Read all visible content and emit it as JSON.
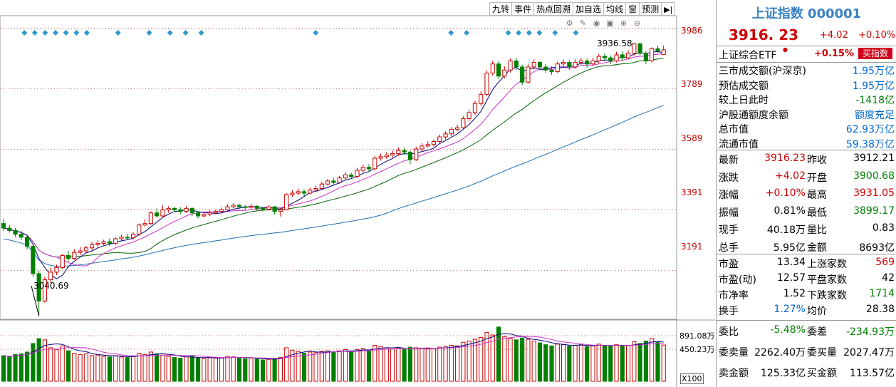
{
  "toolbar": {
    "buttons": [
      "九转",
      "事件",
      "热点回溯",
      "加自选",
      "均线",
      "窗",
      "预测"
    ],
    "collapse_icon": "collapse-right-icon"
  },
  "tool_icons": [
    "settings-icon",
    "pen-icon",
    "eye-icon",
    "lock-icon",
    "zoom-in-icon",
    "zoom-out-icon"
  ],
  "price_axis": {
    "ticks": [
      "3986",
      "3789",
      "3589",
      "3391",
      "3191"
    ],
    "high_annotation": "3936.58",
    "low_annotation": "3040.69"
  },
  "volume_axis": {
    "ticks": [
      "891.08万",
      "450.23万"
    ],
    "unit": "X100"
  },
  "colors": {
    "up": "#cc0000",
    "down": "#008000",
    "ma5": "#000080",
    "ma10": "#cc33cc",
    "ma20": "#006400",
    "ma60": "#1f6fb2",
    "event_marker": "#3399cc",
    "title": "#3a82c4"
  },
  "quote": {
    "title": "上证指数  000001",
    "price": "3916. 23",
    "change": "+4.02",
    "change_pct": "+0.10%",
    "etf_name": "上证综合ETF",
    "etf_pct": "+0.15%",
    "etf_button": "买指数",
    "turnover": [
      {
        "k": "三市成交额(沪深京)",
        "v": "1.95万亿",
        "c": "blue"
      },
      {
        "k": "预估成交额",
        "v": "1.95万亿",
        "c": "blue"
      },
      {
        "k": "较上日此时",
        "v": "-1418亿",
        "c": "grn"
      },
      {
        "k": "沪股通额度余额",
        "v": "额度充足",
        "c": "blue"
      },
      {
        "k": "总市值",
        "v": "62.93万亿",
        "c": "blue"
      },
      {
        "k": "流通市值",
        "v": "59.38万亿",
        "c": "blue"
      }
    ],
    "grid": [
      {
        "l1": "最新",
        "v1": "3916.23",
        "c1": "red",
        "l2": "昨收",
        "v2": "3912.21",
        "c2": "blk"
      },
      {
        "l1": "涨跌",
        "v1": "+4.02",
        "c1": "red",
        "l2": "开盘",
        "v2": "3900.68",
        "c2": "grn"
      },
      {
        "l1": "涨幅",
        "v1": "+0.10%",
        "c1": "red",
        "l2": "最高",
        "v2": "3931.05",
        "c2": "red"
      },
      {
        "l1": "振幅",
        "v1": "0.81%",
        "c1": "blk",
        "l2": "最低",
        "v2": "3899.17",
        "c2": "grn"
      },
      {
        "l1": "现手",
        "v1": "40.18万",
        "c1": "blk",
        "l2": "量比",
        "v2": "0.83",
        "c2": "blk"
      },
      {
        "l1": "总手",
        "v1": "5.95亿",
        "c1": "blk",
        "l2": "金额",
        "v2": "8693亿",
        "c2": "blk"
      }
    ],
    "stats": [
      {
        "l1": "市盈",
        "v1": "13.34",
        "c1": "blk",
        "l2": "上涨家数",
        "v2": "569",
        "c2": "red"
      },
      {
        "l1": "市盈(动)",
        "v1": "12.57",
        "c1": "blk",
        "l2": "平盘家数",
        "v2": "42",
        "c2": "blk"
      },
      {
        "l1": "市净率",
        "v1": "1.52",
        "c1": "blk",
        "l2": "下跌家数",
        "v2": "1714",
        "c2": "grn"
      },
      {
        "l1": "换手",
        "v1": "1.27%",
        "c1": "blue",
        "l2": "均价",
        "v2": "28.38",
        "c2": "blk"
      }
    ],
    "order": [
      {
        "l1": "委比",
        "v1": "-5.48%",
        "c1": "grn",
        "l2": "委差",
        "v2": "-234.93万",
        "c2": "grn"
      },
      {
        "l1": "委卖量",
        "v1": "2262.40万",
        "c1": "blk",
        "l2": "委买量",
        "v2": "2027.47万",
        "c2": "blk"
      },
      {
        "l1": "卖金额",
        "v1": "125.33亿",
        "c1": "blk",
        "l2": "买金额",
        "v2": "113.57亿",
        "c2": "blk"
      }
    ]
  },
  "chart_data": {
    "type": "candlestick",
    "ylim": [
      3030,
      4010
    ],
    "ma_lines": [
      "MA5",
      "MA10",
      "MA20",
      "MA60"
    ],
    "candles": [
      [
        3345,
        3330,
        3360,
        3320,
        4.2
      ],
      [
        3330,
        3322,
        3340,
        3315,
        4.0
      ],
      [
        3322,
        3310,
        3330,
        3300,
        4.4
      ],
      [
        3310,
        3300,
        3322,
        3290,
        4.5
      ],
      [
        3300,
        3270,
        3305,
        3260,
        4.8
      ],
      [
        3270,
        3180,
        3275,
        3170,
        6.2
      ],
      [
        3180,
        3090,
        3190,
        3040,
        7.0
      ],
      [
        3090,
        3160,
        3170,
        3085,
        6.8
      ],
      [
        3160,
        3185,
        3200,
        3150,
        5.5
      ],
      [
        3185,
        3200,
        3210,
        3175,
        5.2
      ],
      [
        3200,
        3240,
        3245,
        3195,
        5.8
      ],
      [
        3240,
        3230,
        3255,
        3220,
        5.0
      ],
      [
        3230,
        3250,
        3262,
        3225,
        4.6
      ],
      [
        3250,
        3255,
        3268,
        3240,
        4.4
      ],
      [
        3255,
        3265,
        3272,
        3248,
        4.5
      ],
      [
        3265,
        3275,
        3285,
        3258,
        4.2
      ],
      [
        3275,
        3280,
        3290,
        3268,
        4.3
      ],
      [
        3280,
        3285,
        3292,
        3272,
        4.1
      ],
      [
        3285,
        3280,
        3296,
        3270,
        4.0
      ],
      [
        3280,
        3295,
        3300,
        3275,
        4.2
      ],
      [
        3295,
        3300,
        3308,
        3288,
        4.0
      ],
      [
        3300,
        3298,
        3312,
        3290,
        3.9
      ],
      [
        3298,
        3310,
        3318,
        3292,
        4.1
      ],
      [
        3310,
        3340,
        3345,
        3305,
        4.6
      ],
      [
        3340,
        3345,
        3360,
        3335,
        4.4
      ],
      [
        3345,
        3380,
        3385,
        3340,
        4.8
      ],
      [
        3380,
        3370,
        3395,
        3365,
        4.5
      ],
      [
        3370,
        3390,
        3405,
        3365,
        4.3
      ],
      [
        3390,
        3395,
        3402,
        3380,
        4.1
      ],
      [
        3395,
        3390,
        3400,
        3382,
        3.9
      ],
      [
        3390,
        3385,
        3398,
        3375,
        3.8
      ],
      [
        3385,
        3395,
        3403,
        3380,
        4.0
      ],
      [
        3395,
        3380,
        3398,
        3370,
        4.1
      ],
      [
        3380,
        3370,
        3386,
        3362,
        3.8
      ],
      [
        3370,
        3375,
        3382,
        3365,
        3.7
      ],
      [
        3375,
        3380,
        3390,
        3370,
        3.9
      ],
      [
        3380,
        3385,
        3392,
        3375,
        3.8
      ],
      [
        3385,
        3390,
        3398,
        3378,
        3.9
      ],
      [
        3390,
        3400,
        3408,
        3385,
        4.1
      ],
      [
        3400,
        3405,
        3412,
        3395,
        4.0
      ],
      [
        3405,
        3400,
        3410,
        3393,
        3.8
      ],
      [
        3400,
        3398,
        3406,
        3390,
        3.7
      ],
      [
        3398,
        3402,
        3410,
        3392,
        3.8
      ],
      [
        3402,
        3395,
        3406,
        3388,
        3.7
      ],
      [
        3395,
        3392,
        3400,
        3385,
        3.5
      ],
      [
        3392,
        3400,
        3405,
        3388,
        3.6
      ],
      [
        3400,
        3385,
        3402,
        3375,
        3.7
      ],
      [
        3385,
        3390,
        3396,
        3368,
        3.9
      ],
      [
        3390,
        3440,
        3445,
        3388,
        5.5
      ],
      [
        3440,
        3445,
        3455,
        3432,
        5.1
      ],
      [
        3445,
        3450,
        3460,
        3438,
        4.9
      ],
      [
        3450,
        3445,
        3458,
        3435,
        4.6
      ],
      [
        3445,
        3455,
        3462,
        3440,
        4.8
      ],
      [
        3455,
        3460,
        3470,
        3450,
        4.7
      ],
      [
        3460,
        3475,
        3482,
        3455,
        4.9
      ],
      [
        3475,
        3485,
        3492,
        3470,
        5.0
      ],
      [
        3485,
        3480,
        3495,
        3472,
        4.8
      ],
      [
        3480,
        3495,
        3502,
        3475,
        5.0
      ],
      [
        3495,
        3505,
        3515,
        3490,
        5.2
      ],
      [
        3505,
        3500,
        3512,
        3492,
        4.9
      ],
      [
        3500,
        3520,
        3528,
        3495,
        5.2
      ],
      [
        3520,
        3530,
        3538,
        3512,
        5.4
      ],
      [
        3530,
        3525,
        3540,
        3515,
        5.0
      ],
      [
        3525,
        3560,
        3568,
        3520,
        5.9
      ],
      [
        3560,
        3565,
        3575,
        3552,
        5.7
      ],
      [
        3565,
        3570,
        3580,
        3558,
        5.5
      ],
      [
        3570,
        3575,
        3585,
        3562,
        5.3
      ],
      [
        3575,
        3585,
        3595,
        3568,
        5.4
      ],
      [
        3585,
        3580,
        3595,
        3570,
        5.2
      ],
      [
        3580,
        3555,
        3585,
        3540,
        5.6
      ],
      [
        3555,
        3590,
        3598,
        3550,
        5.5
      ],
      [
        3590,
        3600,
        3610,
        3582,
        5.4
      ],
      [
        3600,
        3605,
        3615,
        3595,
        5.3
      ],
      [
        3605,
        3615,
        3622,
        3598,
        5.4
      ],
      [
        3615,
        3630,
        3638,
        3608,
        5.6
      ],
      [
        3630,
        3640,
        3648,
        3622,
        5.7
      ],
      [
        3640,
        3655,
        3662,
        3632,
        5.9
      ],
      [
        3655,
        3660,
        3670,
        3648,
        5.8
      ],
      [
        3660,
        3690,
        3698,
        3655,
        6.4
      ],
      [
        3690,
        3710,
        3720,
        3682,
        6.6
      ],
      [
        3710,
        3740,
        3748,
        3702,
        6.9
      ],
      [
        3740,
        3770,
        3780,
        3732,
        7.2
      ],
      [
        3770,
        3840,
        3848,
        3765,
        8.0
      ],
      [
        3840,
        3870,
        3880,
        3832,
        7.6
      ],
      [
        3870,
        3830,
        3880,
        3820,
        8.9
      ],
      [
        3830,
        3850,
        3862,
        3822,
        7.3
      ],
      [
        3850,
        3880,
        3888,
        3842,
        7.0
      ],
      [
        3880,
        3860,
        3890,
        3850,
        6.8
      ],
      [
        3860,
        3810,
        3868,
        3800,
        7.1
      ],
      [
        3810,
        3860,
        3870,
        3805,
        6.9
      ],
      [
        3860,
        3875,
        3885,
        3852,
        6.6
      ],
      [
        3875,
        3860,
        3880,
        3848,
        6.3
      ],
      [
        3860,
        3850,
        3870,
        3840,
        6.0
      ],
      [
        3850,
        3845,
        3862,
        3835,
        5.8
      ],
      [
        3845,
        3870,
        3878,
        3840,
        6.1
      ],
      [
        3870,
        3875,
        3885,
        3862,
        6.0
      ],
      [
        3875,
        3860,
        3882,
        3850,
        5.8
      ],
      [
        3860,
        3875,
        3885,
        3855,
        5.9
      ],
      [
        3875,
        3880,
        3890,
        3868,
        6.0
      ],
      [
        3880,
        3870,
        3888,
        3858,
        5.7
      ],
      [
        3870,
        3880,
        3890,
        3862,
        5.8
      ],
      [
        3880,
        3895,
        3902,
        3872,
        6.1
      ],
      [
        3895,
        3890,
        3905,
        3880,
        5.9
      ],
      [
        3890,
        3880,
        3898,
        3870,
        5.7
      ],
      [
        3880,
        3900,
        3910,
        3875,
        6.0
      ],
      [
        3900,
        3890,
        3912,
        3880,
        5.8
      ],
      [
        3890,
        3905,
        3915,
        3885,
        5.9
      ],
      [
        3905,
        3936,
        3936.58,
        3898,
        6.5
      ],
      [
        3936,
        3905,
        3940,
        3898,
        6.2
      ],
      [
        3905,
        3880,
        3912,
        3870,
        6.6
      ],
      [
        3880,
        3920,
        3925,
        3875,
        7.0
      ],
      [
        3920,
        3912,
        3930,
        3905,
        6.4
      ],
      [
        3900.68,
        3916.23,
        3931.05,
        3899.17,
        5.95
      ]
    ]
  }
}
